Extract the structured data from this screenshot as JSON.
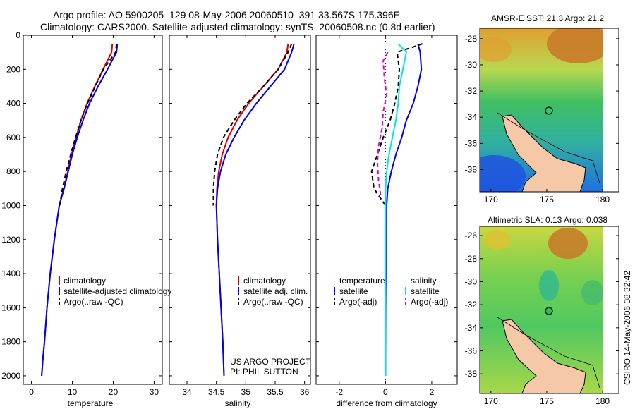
{
  "header": {
    "line1": "Argo profile: AO 5900205_129 08-May-2006 20060510_391 33.567S 175.396E",
    "line2": "Climatology: CARS2000. Satellite-adjusted climatology: synTS_20060508.nc (0.8d earlier)"
  },
  "footer": {
    "project": "US ARGO PROJECT",
    "pi": "PI: PHIL SUTTON",
    "stamp": "CSIRO 14-May-2006 08:32:42"
  },
  "colors": {
    "climatology": "#dd0000",
    "satellite": "#0000ee",
    "argo": "#000000",
    "sat_salinity": "#00e5e5",
    "argo_salinity_diff": "#dd00dd",
    "land": "#f5c8a8"
  },
  "chart_data": [
    {
      "type": "line",
      "id": "temperature",
      "xlabel": "temperature",
      "ylabel": "",
      "xlim": [
        -2,
        32
      ],
      "ylim": [
        2050,
        0
      ],
      "xticks": [
        0,
        10,
        20,
        30
      ],
      "yticks": [
        0,
        200,
        400,
        600,
        800,
        1000,
        1200,
        1400,
        1600,
        1800,
        2000
      ],
      "legend": [
        "climatology",
        "satellite-adjusted climatology",
        "Argo(..raw -QC)"
      ],
      "series": [
        {
          "name": "climatology",
          "color": "#dd0000",
          "dash": "",
          "x": [
            19.8,
            19.6,
            17.5,
            15.5,
            13.6,
            12.1,
            10.9,
            9.8,
            8.9,
            7.9,
            6.8,
            5.6,
            4.6,
            3.8,
            3.2,
            2.8,
            2.5
          ],
          "y": [
            50,
            100,
            200,
            300,
            400,
            500,
            600,
            700,
            800,
            900,
            1000,
            1200,
            1400,
            1600,
            1800,
            1900,
            2000
          ]
        },
        {
          "name": "satellite-adjusted climatology",
          "color": "#0000ee",
          "dash": "",
          "x": [
            21.0,
            20.8,
            18.6,
            16.3,
            14.2,
            12.6,
            11.2,
            10.0,
            9.0,
            8.0,
            6.8,
            5.6,
            4.6,
            3.8,
            3.2,
            2.8,
            2.5
          ],
          "y": [
            50,
            100,
            200,
            300,
            400,
            500,
            600,
            700,
            800,
            900,
            1000,
            1200,
            1400,
            1600,
            1800,
            1900,
            2000
          ]
        },
        {
          "name": "Argo(..raw -QC)",
          "color": "#000000",
          "dash": "6,4",
          "x": [
            20.8,
            20.6,
            17.6,
            15.6,
            13.7,
            12.1,
            10.8,
            9.6,
            8.5,
            7.6,
            6.9
          ],
          "y": [
            50,
            100,
            200,
            300,
            400,
            500,
            600,
            700,
            800,
            900,
            1000
          ]
        }
      ]
    },
    {
      "type": "line",
      "id": "salinity",
      "xlabel": "salinity",
      "ylabel": "",
      "xlim": [
        33.7,
        36.1
      ],
      "ylim": [
        2050,
        0
      ],
      "xticks": [
        34,
        34.5,
        35,
        35.5,
        36
      ],
      "legend": [
        "climatology",
        "satellite adj. clim.",
        "Argo(..raw -QC)"
      ],
      "series": [
        {
          "name": "climatology",
          "color": "#dd0000",
          "dash": "",
          "x": [
            35.72,
            35.7,
            35.55,
            35.3,
            35.05,
            34.85,
            34.7,
            34.6,
            34.54,
            34.51,
            34.5,
            34.52,
            34.55,
            34.58,
            34.61,
            34.63
          ],
          "y": [
            50,
            100,
            200,
            300,
            400,
            500,
            600,
            700,
            800,
            900,
            1000,
            1200,
            1400,
            1600,
            1800,
            2000
          ]
        },
        {
          "name": "satellite adj. clim.",
          "color": "#0000ee",
          "dash": "",
          "x": [
            35.82,
            35.78,
            35.66,
            35.42,
            35.18,
            34.97,
            34.8,
            34.66,
            34.57,
            34.52,
            34.5,
            34.52,
            34.55,
            34.58,
            34.61,
            34.63
          ],
          "y": [
            50,
            100,
            200,
            300,
            400,
            500,
            600,
            700,
            800,
            900,
            1000,
            1200,
            1400,
            1600,
            1800,
            2000
          ]
        },
        {
          "name": "Argo(..raw -QC)",
          "color": "#000000",
          "dash": "6,4",
          "x": [
            35.78,
            35.72,
            35.55,
            35.3,
            35.02,
            34.8,
            34.62,
            34.52,
            34.47,
            34.45,
            34.45
          ],
          "y": [
            50,
            100,
            200,
            300,
            400,
            500,
            600,
            700,
            800,
            900,
            1000
          ]
        }
      ]
    },
    {
      "type": "line",
      "id": "difference",
      "xlabel": "difference from climatology",
      "ylabel": "",
      "xlim": [
        -3,
        3.1
      ],
      "ylim": [
        2050,
        0
      ],
      "xticks": [
        -2,
        0,
        2
      ],
      "legend_groups": [
        {
          "title": "temperature",
          "items": [
            "satellite",
            "Argo(-adj)"
          ]
        },
        {
          "title": "salinity",
          "items": [
            "satellite",
            "Argo(-adj)"
          ]
        }
      ],
      "series": [
        {
          "name": "satellite",
          "group": "temperature",
          "color": "#0000ee",
          "dash": "",
          "x": [
            1.4,
            1.5,
            1.55,
            1.4,
            1.2,
            0.9,
            0.7,
            0.45,
            0.25,
            0.1,
            0.05,
            0.03,
            0.02,
            0.01,
            0.0
          ],
          "y": [
            50,
            100,
            200,
            300,
            400,
            500,
            600,
            700,
            800,
            900,
            1000,
            1200,
            1400,
            1600,
            2000
          ]
        },
        {
          "name": "Argo(-adj)",
          "group": "temperature",
          "color": "#000000",
          "dash": "6,4",
          "x": [
            1.6,
            0.5,
            0.6,
            0.55,
            0.4,
            0.2,
            -0.1,
            -0.35,
            -0.6,
            -0.5,
            0.0
          ],
          "y": [
            50,
            100,
            200,
            300,
            400,
            500,
            600,
            700,
            800,
            900,
            1000
          ]
        },
        {
          "name": "satellite",
          "group": "salinity",
          "color": "#00e5e5",
          "dash": "",
          "x": [
            0.55,
            0.9,
            0.75,
            0.6,
            0.55,
            0.45,
            0.3,
            0.15,
            0.05,
            0.0,
            0.0,
            0.0,
            0.0
          ],
          "y": [
            50,
            100,
            200,
            300,
            400,
            500,
            600,
            700,
            800,
            900,
            1000,
            1500,
            2000
          ]
        },
        {
          "name": "Argo(-adj)",
          "group": "salinity",
          "color": "#dd00dd",
          "dash": "6,4",
          "x": [
            0.1,
            -0.1,
            -0.05,
            0.05,
            -0.1,
            -0.15,
            -0.3,
            -0.35,
            -0.3,
            -0.2
          ],
          "y": [
            100,
            150,
            250,
            350,
            450,
            550,
            650,
            750,
            850,
            950
          ]
        }
      ]
    },
    {
      "type": "heatmap",
      "id": "sst-map",
      "title": "AMSR-E SST: 21.3 Argo: 21.2",
      "xlim": [
        169,
        180.5
      ],
      "ylim": [
        -39.7,
        -27.2
      ],
      "xticks": [
        170,
        175,
        180
      ],
      "yticks": [
        -28,
        -30,
        -32,
        -34,
        -36,
        -38
      ],
      "profile_location": {
        "lon": 175.396,
        "lat": -33.567
      }
    },
    {
      "type": "heatmap",
      "id": "sla-map",
      "title": "Altimetric SLA: 0.13 Argo: 0.038",
      "xlim": [
        169,
        180.5
      ],
      "ylim": [
        -39.7,
        -25.2
      ],
      "xticks": [
        170,
        175,
        180
      ],
      "yticks": [
        -26,
        -28,
        -30,
        -32,
        -34,
        -36,
        -38
      ],
      "profile_location": {
        "lon": 175.396,
        "lat": -33.567
      }
    }
  ]
}
